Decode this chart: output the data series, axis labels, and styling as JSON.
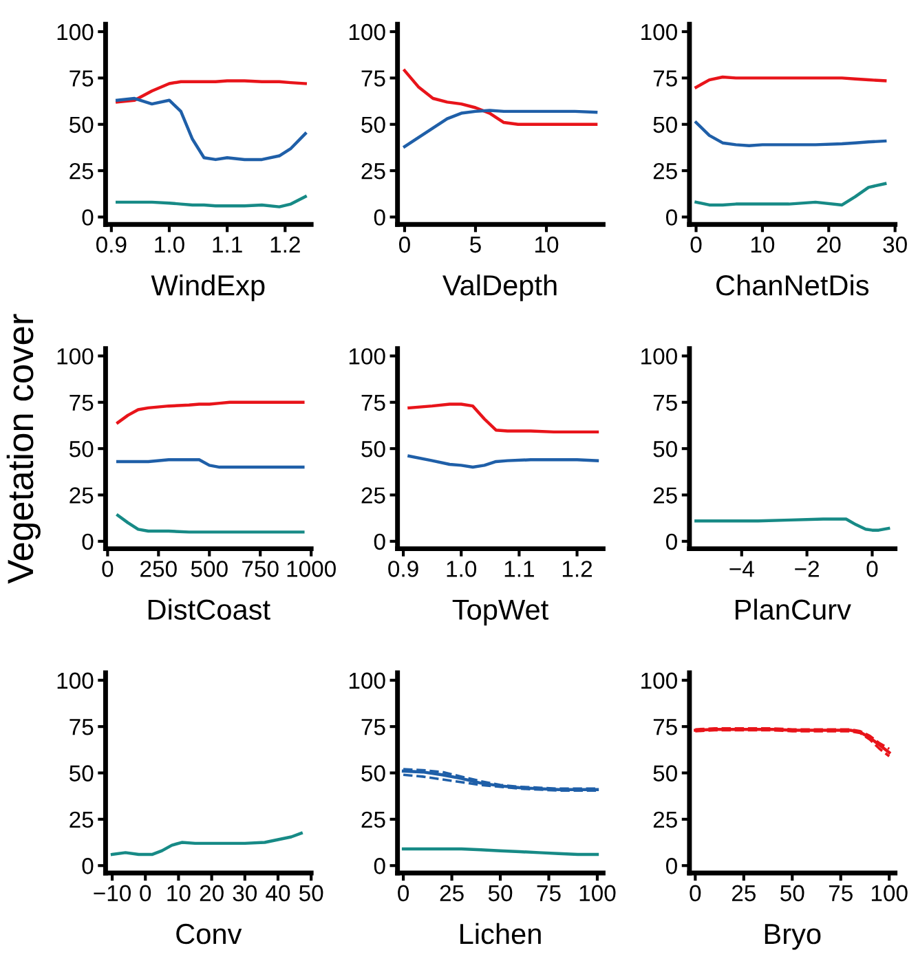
{
  "chart_data": [
    {
      "type": "line",
      "xlabel": "WindExp",
      "xlim": [
        0.89,
        1.245
      ],
      "xticks": [
        0.9,
        {
          "value": 1.0,
          "label": "1.0"
        },
        1.1,
        1.2
      ],
      "ylim": [
        -4,
        104
      ],
      "yticks": [
        0,
        25,
        50,
        75,
        100
      ],
      "x": [
        0.91,
        0.94,
        0.97,
        1.0,
        1.02,
        1.04,
        1.06,
        1.08,
        1.1,
        1.13,
        1.16,
        1.19,
        1.21,
        1.235
      ],
      "series": [
        {
          "color": "#e8141a",
          "values": [
            62,
            63,
            68,
            72,
            73,
            73,
            73,
            73,
            73.5,
            73.5,
            73,
            73,
            72.5,
            72
          ]
        },
        {
          "color": "#1f5fa8",
          "values": [
            63,
            64,
            61,
            63,
            57,
            42,
            32,
            31,
            32,
            31,
            31,
            33,
            37,
            45
          ]
        },
        {
          "color": "#178a86",
          "values": [
            8,
            8,
            8,
            7.5,
            7,
            6.5,
            6.5,
            6,
            6,
            6,
            6.5,
            5.5,
            7,
            11
          ]
        }
      ]
    },
    {
      "type": "line",
      "xlabel": "ValDepth",
      "xlim": [
        -0.5,
        14
      ],
      "xticks": [
        0,
        5,
        10
      ],
      "ylim": [
        -4,
        104
      ],
      "yticks": [
        0,
        25,
        50,
        75,
        100
      ],
      "x": [
        0,
        1,
        2,
        3,
        4,
        5,
        6,
        7,
        8,
        9,
        10,
        11,
        12,
        13.5
      ],
      "series": [
        {
          "color": "#e8141a",
          "values": [
            79,
            70,
            64,
            62,
            61,
            59,
            56,
            51,
            50,
            50,
            50,
            50,
            50,
            50
          ]
        },
        {
          "color": "#1f5fa8",
          "values": [
            38,
            43,
            48,
            53,
            56,
            57,
            57.5,
            57,
            57,
            57,
            57,
            57,
            57,
            56.5
          ]
        }
      ]
    },
    {
      "type": "line",
      "xlabel": "ChanNetDis",
      "xlim": [
        -1,
        30
      ],
      "xticks": [
        0,
        10,
        20,
        30
      ],
      "ylim": [
        -4,
        104
      ],
      "yticks": [
        0,
        25,
        50,
        75,
        100
      ],
      "x": [
        0,
        2,
        4,
        6,
        8,
        10,
        14,
        18,
        22,
        24,
        26,
        28.5
      ],
      "series": [
        {
          "color": "#e8141a",
          "values": [
            70,
            74,
            75.5,
            75,
            75,
            75,
            75,
            75,
            75,
            74.5,
            74,
            73.5
          ]
        },
        {
          "color": "#1f5fa8",
          "values": [
            51,
            44,
            40,
            39,
            38.5,
            39,
            39,
            39,
            39.5,
            40,
            40.5,
            41
          ]
        },
        {
          "color": "#178a86",
          "values": [
            8,
            6.5,
            6.5,
            7,
            7,
            7,
            7,
            8,
            6.5,
            11,
            16,
            18
          ]
        }
      ]
    },
    {
      "type": "line",
      "xlabel": "DistCoast",
      "ylabel": "Vegetation cover",
      "xlim": [
        -10,
        1000
      ],
      "xticks": [
        0,
        250,
        500,
        750,
        1000
      ],
      "ylim": [
        -4,
        104
      ],
      "yticks": [
        0,
        25,
        50,
        75,
        100
      ],
      "x": [
        50,
        100,
        150,
        200,
        300,
        400,
        450,
        500,
        550,
        600,
        700,
        800,
        960
      ],
      "series": [
        {
          "color": "#e8141a",
          "values": [
            64,
            68,
            71,
            72,
            73,
            73.5,
            74,
            74,
            74.5,
            75,
            75,
            75,
            75
          ]
        },
        {
          "color": "#1f5fa8",
          "values": [
            43,
            43,
            43,
            43,
            44,
            44,
            44,
            41,
            40,
            40,
            40,
            40,
            40
          ]
        },
        {
          "color": "#178a86",
          "values": [
            14,
            10,
            6.5,
            5.5,
            5.5,
            5,
            5,
            5,
            5,
            5,
            5,
            5,
            5
          ]
        }
      ]
    },
    {
      "type": "line",
      "xlabel": "TopWet",
      "xlim": [
        0.89,
        1.245
      ],
      "xticks": [
        0.9,
        {
          "value": 1.0,
          "label": "1.0"
        },
        1.1,
        1.2
      ],
      "ylim": [
        -4,
        104
      ],
      "yticks": [
        0,
        25,
        50,
        75,
        100
      ],
      "x": [
        0.91,
        0.95,
        0.98,
        1.0,
        1.02,
        1.04,
        1.06,
        1.08,
        1.12,
        1.16,
        1.2,
        1.235
      ],
      "series": [
        {
          "color": "#e8141a",
          "values": [
            72,
            73,
            74,
            74,
            73,
            66,
            60,
            59.5,
            59.5,
            59,
            59,
            59
          ]
        },
        {
          "color": "#1f5fa8",
          "values": [
            46,
            43.5,
            41.5,
            41,
            40,
            41,
            43,
            43.5,
            44,
            44,
            44,
            43.5
          ]
        }
      ]
    },
    {
      "type": "line",
      "xlabel": "PlanCurv",
      "xlim": [
        -5.6,
        0.7
      ],
      "xticks": [
        {
          "value": -4,
          "label": "−4"
        },
        {
          "value": -2,
          "label": "−2"
        },
        0
      ],
      "ylim": [
        -4,
        104
      ],
      "yticks": [
        0,
        25,
        50,
        75,
        100
      ],
      "x": [
        -5.4,
        -4.5,
        -3.5,
        -2.5,
        -1.5,
        -1.0,
        -0.8,
        -0.5,
        -0.2,
        0,
        0.2,
        0.5
      ],
      "series": [
        {
          "color": "#178a86",
          "values": [
            11,
            11,
            11,
            11.5,
            12,
            12,
            12,
            9,
            6.5,
            6,
            6,
            7
          ]
        }
      ]
    },
    {
      "type": "line",
      "xlabel": "Conv",
      "xlim": [
        -12,
        50
      ],
      "xticks": [
        {
          "value": -10,
          "label": "−10"
        },
        0,
        10,
        20,
        30,
        40,
        50
      ],
      "ylim": [
        -4,
        104
      ],
      "yticks": [
        0,
        25,
        50,
        75,
        100
      ],
      "x": [
        -10,
        -6,
        -2,
        2,
        5,
        8,
        11,
        15,
        20,
        30,
        36,
        40,
        44,
        47
      ],
      "series": [
        {
          "color": "#178a86",
          "values": [
            6,
            7,
            6,
            6,
            8,
            11,
            12.5,
            12,
            12,
            12,
            12.5,
            14,
            15.5,
            17.5
          ]
        }
      ]
    },
    {
      "type": "line",
      "xlabel": "Lichen",
      "xlim": [
        -3,
        103
      ],
      "xticks": [
        0,
        25,
        50,
        75,
        100
      ],
      "ylim": [
        -4,
        104
      ],
      "yticks": [
        0,
        25,
        50,
        75,
        100
      ],
      "x": [
        0,
        10,
        20,
        30,
        40,
        50,
        60,
        70,
        80,
        90,
        100
      ],
      "series": [
        {
          "color": "#1f5fa8",
          "values": [
            51,
            50.5,
            49,
            47,
            44.5,
            43,
            42,
            41.5,
            41,
            41,
            41
          ]
        },
        {
          "color": "#1f5fa8",
          "line_style": "dashed",
          "values": [
            49,
            48,
            46.5,
            45,
            43.5,
            42.5,
            41.5,
            41,
            40.5,
            40.5,
            40.5
          ]
        },
        {
          "color": "#1f5fa8",
          "line_style": "dashed",
          "values": [
            52,
            51.5,
            50.5,
            48,
            45.5,
            43.5,
            42.5,
            42,
            41.5,
            41.5,
            41.5
          ]
        },
        {
          "color": "#178a86",
          "values": [
            9,
            9,
            9,
            9,
            8.5,
            8,
            7.5,
            7,
            6.5,
            6,
            6
          ]
        }
      ]
    },
    {
      "type": "line",
      "xlabel": "Bryo",
      "xlim": [
        -3,
        103
      ],
      "xticks": [
        0,
        25,
        50,
        75,
        100
      ],
      "ylim": [
        -4,
        104
      ],
      "yticks": [
        0,
        25,
        50,
        75,
        100
      ],
      "x": [
        0,
        10,
        20,
        30,
        40,
        50,
        60,
        70,
        80,
        85,
        90,
        95,
        100
      ],
      "series": [
        {
          "color": "#e8141a",
          "values": [
            73,
            73.5,
            73.5,
            73.5,
            73.5,
            73,
            73,
            73,
            73,
            72,
            69,
            65,
            61
          ]
        },
        {
          "color": "#e8141a",
          "line_style": "dashed",
          "values": [
            72.5,
            73,
            73,
            73,
            73,
            72.5,
            72.5,
            72.5,
            72.5,
            71.5,
            68,
            63,
            59
          ]
        },
        {
          "color": "#e8141a",
          "line_style": "dashed",
          "values": [
            73.5,
            74,
            74,
            74,
            74,
            73.5,
            73.5,
            73.5,
            73.5,
            72.5,
            70,
            66,
            63
          ]
        }
      ]
    }
  ]
}
